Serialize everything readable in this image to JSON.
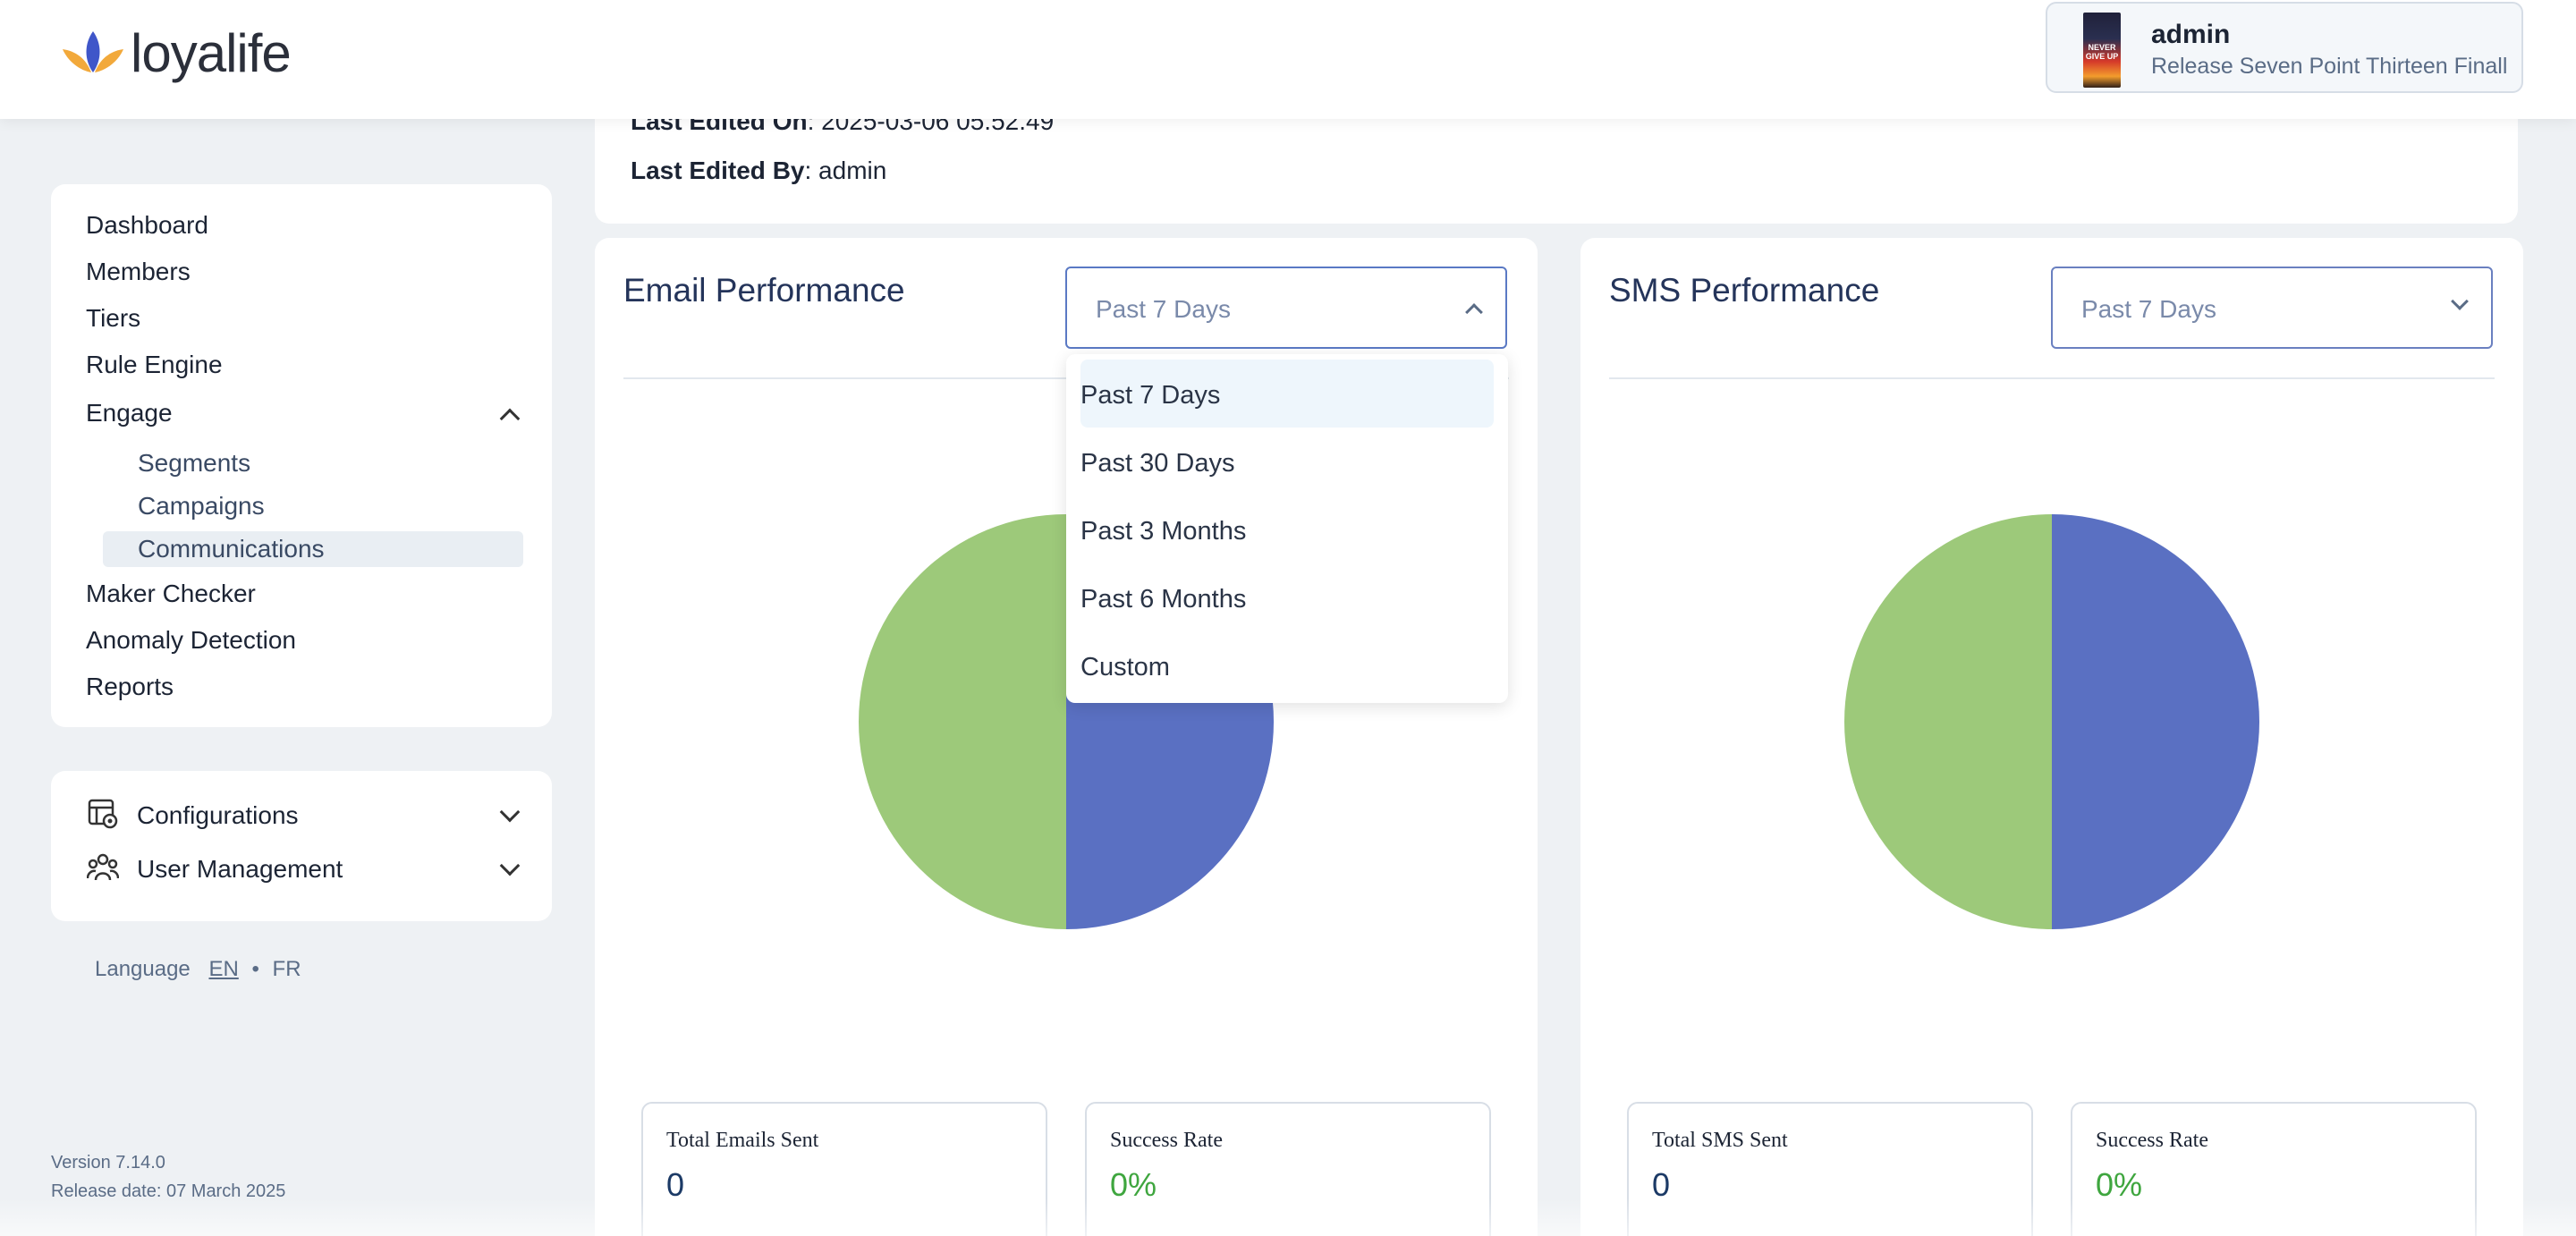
{
  "header": {
    "brand": "loyalife",
    "user": {
      "name": "admin",
      "release": "Release Seven Point Thirteen Finall"
    }
  },
  "sidebar": {
    "nav": [
      {
        "label": "Dashboard"
      },
      {
        "label": "Members"
      },
      {
        "label": "Tiers"
      },
      {
        "label": "Rule Engine"
      },
      {
        "label": "Engage"
      },
      {
        "label": "Maker Checker"
      },
      {
        "label": "Anomaly Detection"
      },
      {
        "label": "Reports"
      }
    ],
    "engage_sub": [
      {
        "label": "Segments"
      },
      {
        "label": "Campaigns"
      },
      {
        "label": "Communications",
        "active": true
      }
    ],
    "settings": [
      {
        "label": "Configurations",
        "icon": "configurations-icon"
      },
      {
        "label": "User Management",
        "icon": "user-management-icon"
      }
    ],
    "language": {
      "label": "Language",
      "en": "EN",
      "fr": "FR"
    },
    "version": "Version 7.14.0",
    "release_date": "Release date: 07 March 2025"
  },
  "info": {
    "last_edited_on_label": "Last Edited On",
    "last_edited_on_value": ": 2025-03-06 05.52.49",
    "last_edited_by_label": "Last Edited By",
    "last_edited_by_value": ": admin"
  },
  "email": {
    "title": "Email Performance",
    "range": "Past 7 Days",
    "total_label": "Total Emails Sent",
    "total_value": "0",
    "success_label": "Success Rate",
    "success_value": "0%"
  },
  "sms": {
    "title": "SMS Performance",
    "range": "Past 7 Days",
    "total_label": "Total SMS Sent",
    "total_value": "0",
    "success_label": "Success Rate",
    "success_value": "0%"
  },
  "range_options": [
    "Past 7 Days",
    "Past 30 Days",
    "Past 3 Months",
    "Past 6 Months",
    "Custom"
  ],
  "colors": {
    "green": "#9dc97a",
    "blue": "#5a70c2",
    "accent": "#5a79c4",
    "success": "#3fa63f"
  },
  "chart_data": [
    {
      "type": "pie",
      "values": [
        50,
        50
      ]
    },
    {
      "type": "pie",
      "values": [
        50,
        50
      ]
    }
  ]
}
